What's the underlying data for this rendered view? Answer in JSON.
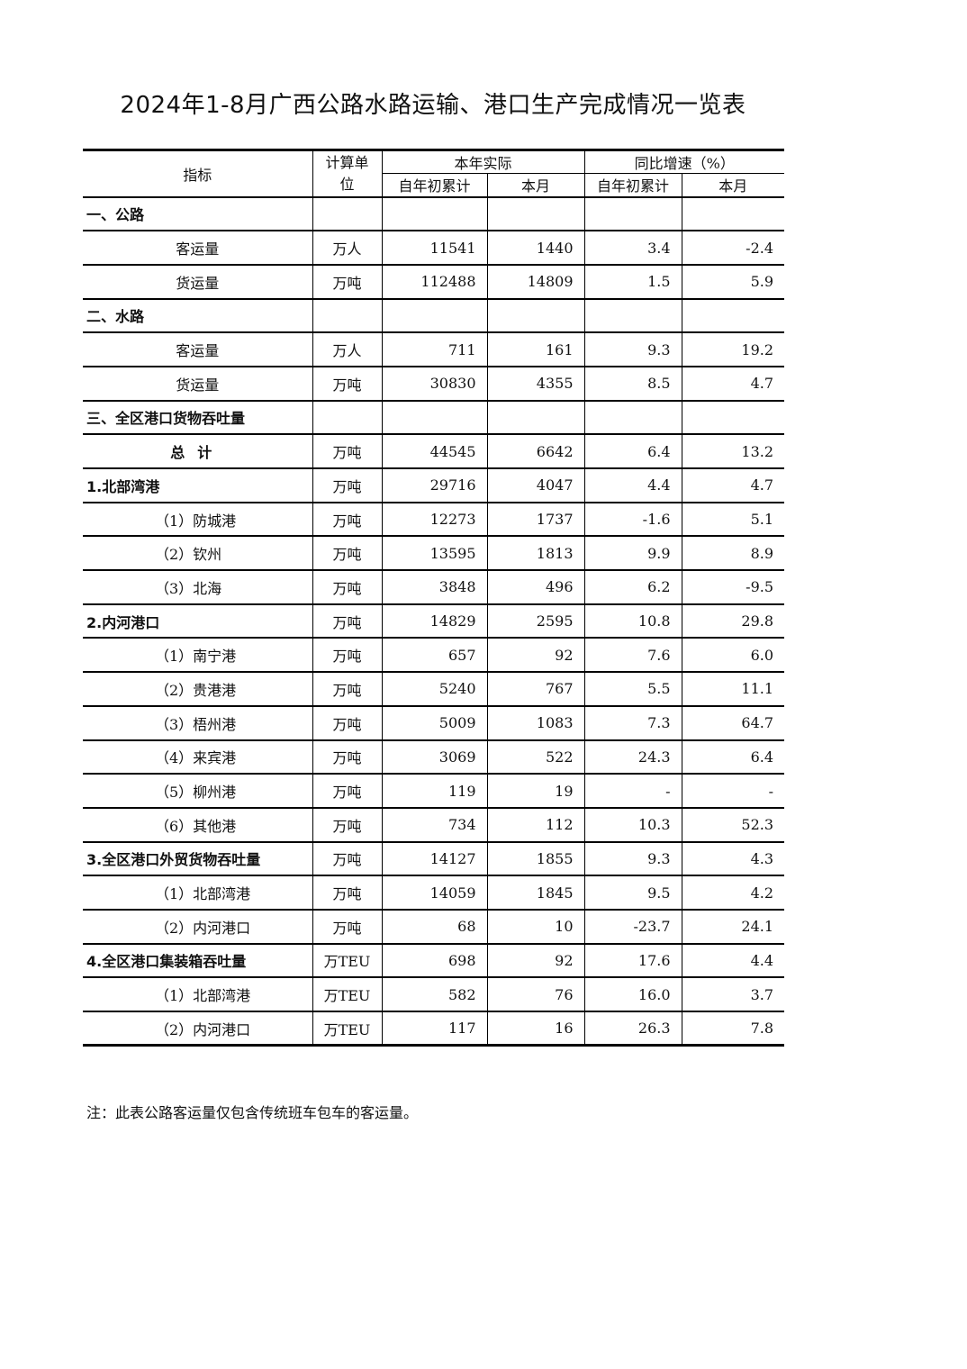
{
  "title": "2024年1-8月广西公路水路运输、港口生产完成情况一览表",
  "header": {
    "indicator": "指标",
    "unit": "计算单位",
    "actual": "本年实际",
    "growth": "同比增速（%）",
    "ytd": "自年初累计",
    "month": "本月"
  },
  "rows": [
    {
      "type": "sec",
      "name": "一、公路",
      "unit": "",
      "ytd": "",
      "month": "",
      "g_ytd": "",
      "g_month": ""
    },
    {
      "type": "item",
      "name": "客运量",
      "unit": "万人",
      "ytd": "11541",
      "month": "1440",
      "g_ytd": "3.4",
      "g_month": "-2.4"
    },
    {
      "type": "item",
      "name": "货运量",
      "unit": "万吨",
      "ytd": "112488",
      "month": "14809",
      "g_ytd": "1.5",
      "g_month": "5.9"
    },
    {
      "type": "sec",
      "name": "二、水路",
      "unit": "",
      "ytd": "",
      "month": "",
      "g_ytd": "",
      "g_month": ""
    },
    {
      "type": "item",
      "name": "客运量",
      "unit": "万人",
      "ytd": "711",
      "month": "161",
      "g_ytd": "9.3",
      "g_month": "19.2"
    },
    {
      "type": "item",
      "name": "货运量",
      "unit": "万吨",
      "ytd": "30830",
      "month": "4355",
      "g_ytd": "8.5",
      "g_month": "4.7"
    },
    {
      "type": "sec",
      "name": "三、全区港口货物吞吐量",
      "unit": "",
      "ytd": "",
      "month": "",
      "g_ytd": "",
      "g_month": ""
    },
    {
      "type": "total",
      "name": "总计",
      "unit": "万吨",
      "ytd": "44545",
      "month": "6642",
      "g_ytd": "6.4",
      "g_month": "13.2"
    },
    {
      "type": "sec",
      "name": "1.北部湾港",
      "unit": "万吨",
      "ytd": "29716",
      "month": "4047",
      "g_ytd": "4.4",
      "g_month": "4.7"
    },
    {
      "type": "sub",
      "name": "（1）防城港",
      "unit": "万吨",
      "ytd": "12273",
      "month": "1737",
      "g_ytd": "-1.6",
      "g_month": "5.1"
    },
    {
      "type": "sub",
      "name": "（2）钦州",
      "unit": "万吨",
      "ytd": "13595",
      "month": "1813",
      "g_ytd": "9.9",
      "g_month": "8.9"
    },
    {
      "type": "sub",
      "name": "（3）北海",
      "unit": "万吨",
      "ytd": "3848",
      "month": "496",
      "g_ytd": "6.2",
      "g_month": "-9.5"
    },
    {
      "type": "sec",
      "name": "2.内河港口",
      "unit": "万吨",
      "ytd": "14829",
      "month": "2595",
      "g_ytd": "10.8",
      "g_month": "29.8"
    },
    {
      "type": "sub",
      "name": "（1）南宁港",
      "unit": "万吨",
      "ytd": "657",
      "month": "92",
      "g_ytd": "7.6",
      "g_month": "6.0"
    },
    {
      "type": "sub",
      "name": "（2）贵港港",
      "unit": "万吨",
      "ytd": "5240",
      "month": "767",
      "g_ytd": "5.5",
      "g_month": "11.1"
    },
    {
      "type": "sub",
      "name": "（3）梧州港",
      "unit": "万吨",
      "ytd": "5009",
      "month": "1083",
      "g_ytd": "7.3",
      "g_month": "64.7"
    },
    {
      "type": "sub",
      "name": "（4）来宾港",
      "unit": "万吨",
      "ytd": "3069",
      "month": "522",
      "g_ytd": "24.3",
      "g_month": "6.4"
    },
    {
      "type": "sub",
      "name": "（5）柳州港",
      "unit": "万吨",
      "ytd": "119",
      "month": "19",
      "g_ytd": "-",
      "g_month": "-"
    },
    {
      "type": "sub",
      "name": "（6）其他港",
      "unit": "万吨",
      "ytd": "734",
      "month": "112",
      "g_ytd": "10.3",
      "g_month": "52.3"
    },
    {
      "type": "sec",
      "name": "3.全区港口外贸货物吞吐量",
      "unit": "万吨",
      "ytd": "14127",
      "month": "1855",
      "g_ytd": "9.3",
      "g_month": "4.3"
    },
    {
      "type": "sub",
      "name": "（1）北部湾港",
      "unit": "万吨",
      "ytd": "14059",
      "month": "1845",
      "g_ytd": "9.5",
      "g_month": "4.2"
    },
    {
      "type": "sub",
      "name": "（2）内河港口",
      "unit": "万吨",
      "ytd": "68",
      "month": "10",
      "g_ytd": "-23.7",
      "g_month": "24.1"
    },
    {
      "type": "sec",
      "name": "4.全区港口集装箱吞吐量",
      "unit": "万TEU",
      "ytd": "698",
      "month": "92",
      "g_ytd": "17.6",
      "g_month": "4.4"
    },
    {
      "type": "sub",
      "name": "（1）北部湾港",
      "unit": "万TEU",
      "ytd": "582",
      "month": "76",
      "g_ytd": "16.0",
      "g_month": "3.7"
    },
    {
      "type": "sub",
      "name": "（2）内河港口",
      "unit": "万TEU",
      "ytd": "117",
      "month": "16",
      "g_ytd": "26.3",
      "g_month": "7.8"
    }
  ],
  "note": "注：此表公路客运量仅包含传统班车包车的客运量。"
}
